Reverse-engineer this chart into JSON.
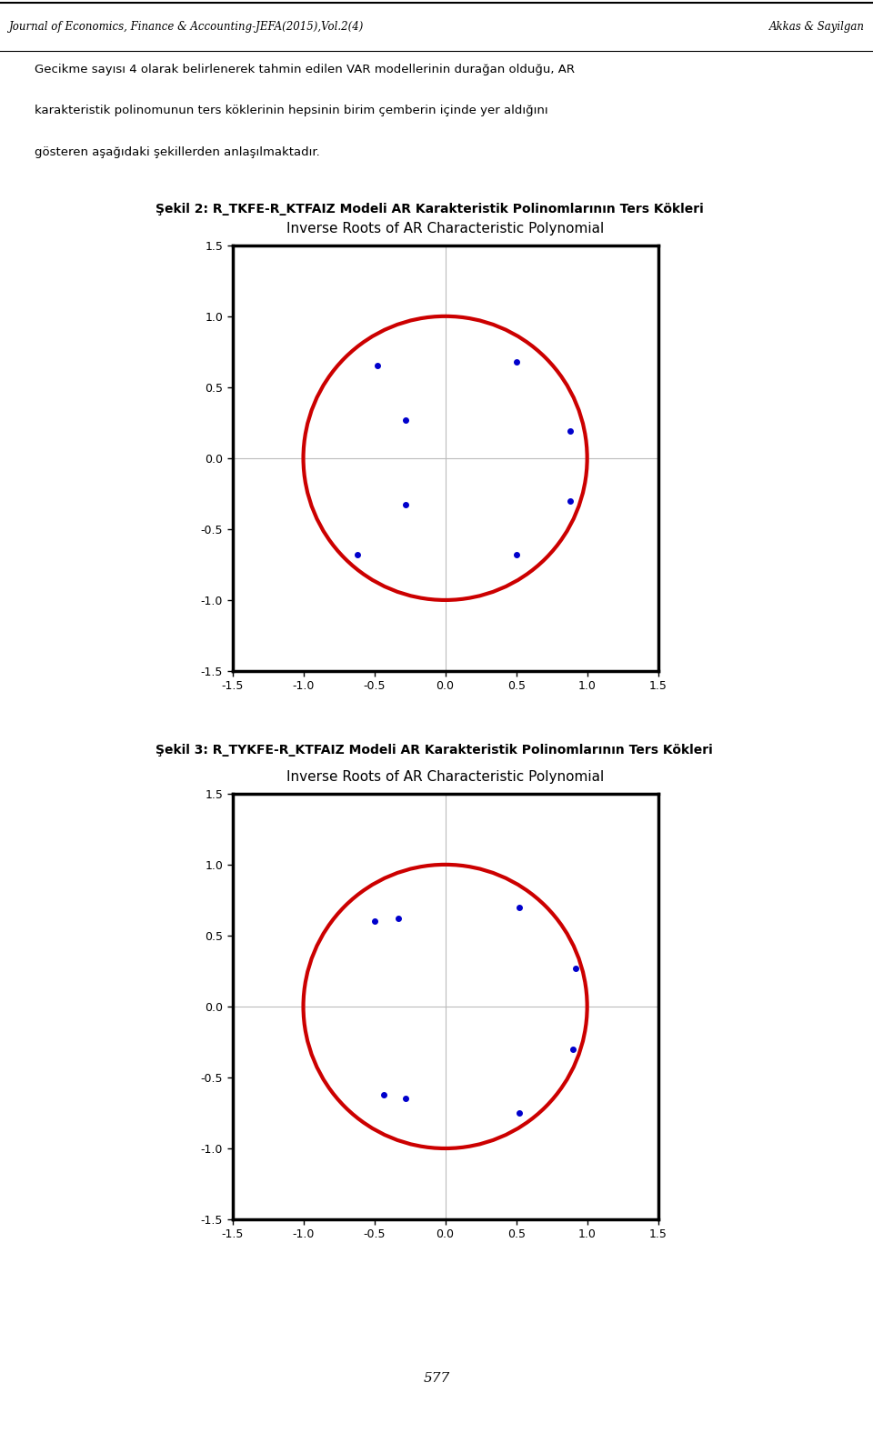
{
  "header_left": "Journal of Economics, Finance & Accounting-JEFA(2015),Vol.2(4)",
  "header_right": "Akkas & Sayilgan",
  "body_text": "Gecikme sayısı 4 olarak belirlenerek tahmin edilen VAR modellerinin durağan olduğu, AR karakteristik polinomunun ters köklerinin hepsinin birim çemberin içinde yer aldığını gösteren aşağıdaki şekillerden anlaşılmaktadır.",
  "figure1_title": "Şekil 2: R_TKFE-R_KTFAIZ Modeli AR Karakteristik Polinomlarının Ters Kökleri",
  "figure2_title": "Şekil 3: R_TYKFE-R_KTFAIZ Modeli AR Karakteristik Polinomlarının Ters Kökleri",
  "chart_title": "Inverse Roots of AR Characteristic Polynomial",
  "page_number": "577",
  "xlim": [
    -1.5,
    1.5
  ],
  "ylim": [
    -1.5,
    1.5
  ],
  "xticks": [
    -1.5,
    -1.0,
    -0.5,
    0.0,
    0.5,
    1.0,
    1.5
  ],
  "yticks": [
    -1.5,
    -1.0,
    -0.5,
    0.0,
    0.5,
    1.0,
    1.5
  ],
  "fig1_dots": [
    [
      -0.48,
      0.65
    ],
    [
      0.5,
      0.68
    ],
    [
      -0.28,
      0.27
    ],
    [
      0.88,
      0.19
    ],
    [
      -0.28,
      -0.33
    ],
    [
      0.88,
      -0.3
    ],
    [
      -0.62,
      -0.68
    ],
    [
      0.5,
      -0.68
    ]
  ],
  "fig2_dots": [
    [
      -0.5,
      0.6
    ],
    [
      -0.33,
      0.62
    ],
    [
      0.52,
      0.7
    ],
    [
      0.92,
      0.27
    ],
    [
      0.9,
      -0.3
    ],
    [
      -0.43,
      -0.62
    ],
    [
      -0.28,
      -0.65
    ],
    [
      0.52,
      -0.75
    ]
  ],
  "dot_color": "#0000cc",
  "circle_color": "#cc0000",
  "circle_linewidth": 3.0,
  "dot_size": 4,
  "background_color": "#ffffff",
  "grid_color": "#bbbbbb"
}
